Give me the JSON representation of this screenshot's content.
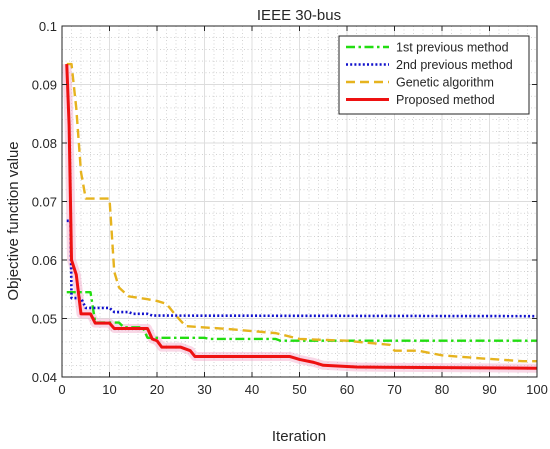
{
  "chart_data": {
    "type": "line",
    "title": "IEEE 30-bus",
    "xlabel": "Iteration",
    "ylabel": "Objective function value",
    "xlim": [
      0,
      100
    ],
    "ylim": [
      0.04,
      0.1
    ],
    "xticks": [
      0,
      10,
      20,
      30,
      40,
      50,
      60,
      70,
      80,
      90,
      100
    ],
    "yticks": [
      0.04,
      0.05,
      0.06,
      0.07,
      0.08,
      0.09,
      0.1
    ],
    "xtick_labels": [
      "0",
      "10",
      "20",
      "30",
      "40",
      "50",
      "60",
      "70",
      "80",
      "90",
      "100"
    ],
    "ytick_labels": [
      "0.04",
      "0.05",
      "0.06",
      "0.07",
      "0.08",
      "0.09",
      "0.1"
    ],
    "grid": true,
    "minor_grid": true,
    "legend_position": "top-right",
    "series": [
      {
        "name": "1st previous method",
        "color": "#22dd11",
        "style": "dash-dot",
        "points": [
          [
            1,
            0.0545
          ],
          [
            6,
            0.0545
          ],
          [
            7,
            0.0493
          ],
          [
            12,
            0.0493
          ],
          [
            13,
            0.0485
          ],
          [
            17,
            0.0485
          ],
          [
            18,
            0.0467
          ],
          [
            30,
            0.0467
          ],
          [
            31,
            0.0465
          ],
          [
            45,
            0.0465
          ],
          [
            46,
            0.0462
          ],
          [
            100,
            0.0462
          ]
        ]
      },
      {
        "name": "2nd previous method",
        "color": "#1010cc",
        "style": "dotted",
        "points": [
          [
            1,
            0.0667
          ],
          [
            1.8,
            0.0667
          ],
          [
            2,
            0.0535
          ],
          [
            4,
            0.0535
          ],
          [
            5,
            0.0518
          ],
          [
            10,
            0.0518
          ],
          [
            11,
            0.0511
          ],
          [
            14,
            0.0511
          ],
          [
            15,
            0.0508
          ],
          [
            18,
            0.0508
          ],
          [
            19,
            0.0505
          ],
          [
            100,
            0.0504
          ]
        ]
      },
      {
        "name": "Genetic algorithm",
        "color": "#e6b31e",
        "style": "dashed",
        "points": [
          [
            1,
            0.0935
          ],
          [
            2,
            0.0935
          ],
          [
            3,
            0.086
          ],
          [
            4,
            0.075
          ],
          [
            5,
            0.0705
          ],
          [
            8,
            0.0705
          ],
          [
            9,
            0.0705
          ],
          [
            10,
            0.0705
          ],
          [
            11,
            0.058
          ],
          [
            12,
            0.0553
          ],
          [
            14,
            0.0538
          ],
          [
            18,
            0.0533
          ],
          [
            20,
            0.053
          ],
          [
            22,
            0.0525
          ],
          [
            24,
            0.0505
          ],
          [
            26,
            0.0487
          ],
          [
            35,
            0.0482
          ],
          [
            45,
            0.0475
          ],
          [
            50,
            0.0465
          ],
          [
            60,
            0.0462
          ],
          [
            65,
            0.0458
          ],
          [
            69,
            0.0455
          ],
          [
            70,
            0.0445
          ],
          [
            75,
            0.0445
          ],
          [
            80,
            0.0437
          ],
          [
            88,
            0.0432
          ],
          [
            97,
            0.0427
          ],
          [
            100,
            0.0427
          ]
        ]
      },
      {
        "name": "Proposed method",
        "color": "#ee1111",
        "style": "solid",
        "points": [
          [
            1,
            0.0935
          ],
          [
            1.5,
            0.083
          ],
          [
            2,
            0.06
          ],
          [
            3,
            0.0575
          ],
          [
            4,
            0.0508
          ],
          [
            6,
            0.0508
          ],
          [
            7,
            0.0492
          ],
          [
            10,
            0.0492
          ],
          [
            11,
            0.0483
          ],
          [
            18,
            0.0483
          ],
          [
            19,
            0.0465
          ],
          [
            20,
            0.0462
          ],
          [
            21,
            0.0451
          ],
          [
            25,
            0.0451
          ],
          [
            26,
            0.0448
          ],
          [
            27,
            0.0445
          ],
          [
            28,
            0.0435
          ],
          [
            48,
            0.0435
          ],
          [
            50,
            0.043
          ],
          [
            53,
            0.0425
          ],
          [
            55,
            0.042
          ],
          [
            62,
            0.0417
          ],
          [
            100,
            0.0415
          ]
        ]
      }
    ]
  }
}
